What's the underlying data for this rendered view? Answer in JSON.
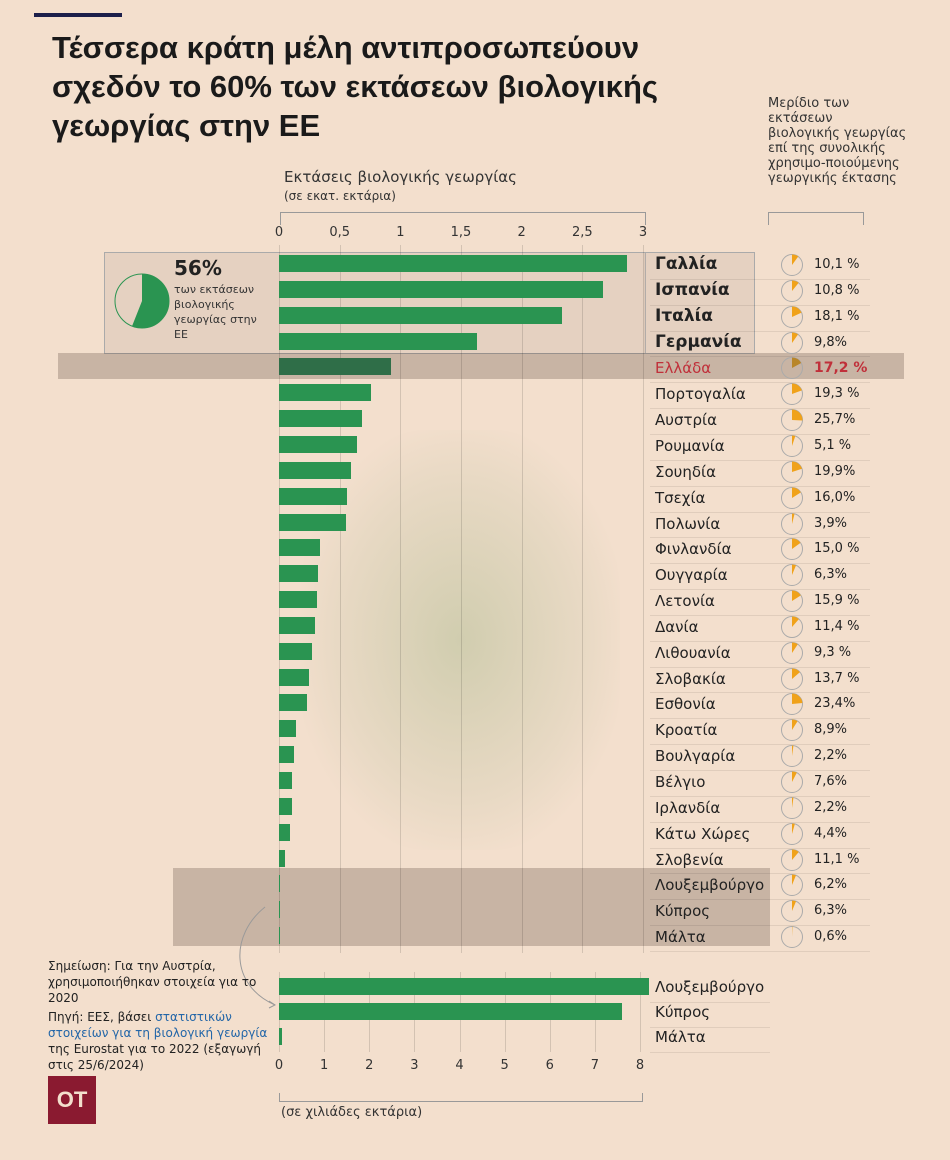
{
  "title": "Τέσσερα κράτη μέλη αντιπροσωπεύουν σχεδόν το 60% των εκτάσεων βιολογικής γεωργίας στην ΕΕ",
  "axis_title": "Εκτάσεις βιολογικής γεωργίας",
  "axis_sub": "(σε εκατ. εκτάρια)",
  "share_title": "Μερίδιο των εκτάσεων βιολογικής γεωργίας επί της συνολικής χρησιμο-ποιούμενης γεωργικής έκτασης",
  "callout": {
    "value": "56%",
    "text": "των εκτάσεων βιολογικής γεωργίας στην ΕΕ",
    "fraction": 0.56
  },
  "note": "Σημείωση: Για την Αυστρία, χρησιμοποιήθηκαν στοιχεία για το 2020",
  "source_pre": "Πηγή: ΕΕΣ, βάσει ",
  "source_link": "στατιστικών στοιχείων για τη βιολογική γεωργία",
  "source_post": " της Eurostat για το 2022 (εξαγωγή στις 25/6/2024)",
  "logo": "OT",
  "bottom_unit": "(σε χιλιάδες εκτάρια)",
  "colors": {
    "bar": "#2a9451",
    "pie": "#f0a21a",
    "highlight": "#c0303a",
    "logo": "#8a1a30"
  },
  "chart_data": [
    {
      "type": "bar",
      "orientation": "horizontal",
      "xlabel": "Εκτάσεις βιολογικής γεωργίας (σε εκατ. εκτάρια)",
      "xlim": [
        0,
        3
      ],
      "ticks": [
        "0",
        "0,5",
        "1",
        "1,5",
        "2",
        "2,5",
        "3"
      ],
      "tick_values": [
        0,
        0.5,
        1,
        1.5,
        2,
        2.5,
        3
      ],
      "categories": [
        "Γαλλία",
        "Ισπανία",
        "Ιταλία",
        "Γερμανία",
        "Ελλάδα",
        "Πορτογαλία",
        "Αυστρία",
        "Ρουμανία",
        "Σουηδία",
        "Τσεχία",
        "Πολωνία",
        "Φινλανδία",
        "Ουγγαρία",
        "Λετονία",
        "Δανία",
        "Λιθουανία",
        "Σλοβακία",
        "Εσθονία",
        "Κροατία",
        "Βουλγαρία",
        "Βέλγιο",
        "Ιρλανδία",
        "Κάτω Χώρες",
        "Σλοβενία",
        "Λουξεμβούργο",
        "Κύπρος",
        "Μάλτα"
      ],
      "values": [
        2.87,
        2.67,
        2.33,
        1.63,
        0.92,
        0.76,
        0.68,
        0.64,
        0.59,
        0.56,
        0.55,
        0.34,
        0.32,
        0.31,
        0.3,
        0.27,
        0.25,
        0.23,
        0.14,
        0.12,
        0.11,
        0.11,
        0.09,
        0.05,
        0.008,
        0.0076,
        5e-05
      ],
      "share_labels": [
        "10,1 %",
        "10,8 %",
        "18,1 %",
        "9,8%",
        "17,2 %",
        "19,3 %",
        "25,7%",
        "5,1 %",
        "19,9%",
        "16,0%",
        "3,9%",
        "15,0 %",
        "6,3%",
        "15,9 %",
        "11,4 %",
        "9,3 %",
        "13,7 %",
        "23,4%",
        "8,9%",
        "2,2%",
        "7,6%",
        "2,2%",
        "4,4%",
        "11,1 %",
        "6,2%",
        "6,3%",
        "0,6%"
      ],
      "share_values": [
        10.1,
        10.8,
        18.1,
        9.8,
        17.2,
        19.3,
        25.7,
        5.1,
        19.9,
        16.0,
        3.9,
        15.0,
        6.3,
        15.9,
        11.4,
        9.3,
        13.7,
        23.4,
        8.9,
        2.2,
        7.6,
        2.2,
        4.4,
        11.1,
        6.2,
        6.3,
        0.6
      ]
    },
    {
      "type": "bar",
      "orientation": "horizontal",
      "xlabel": "(σε χιλιάδες εκτάρια)",
      "xlim": [
        0,
        8.2
      ],
      "ticks": [
        "0",
        "1",
        "2",
        "3",
        "4",
        "5",
        "6",
        "7",
        "8"
      ],
      "tick_values": [
        0,
        1,
        2,
        3,
        4,
        5,
        6,
        7,
        8
      ],
      "categories": [
        "Λουξεμβούργο",
        "Κύπρος",
        "Μάλτα"
      ],
      "values": [
        8.2,
        7.6,
        0.05
      ]
    }
  ]
}
